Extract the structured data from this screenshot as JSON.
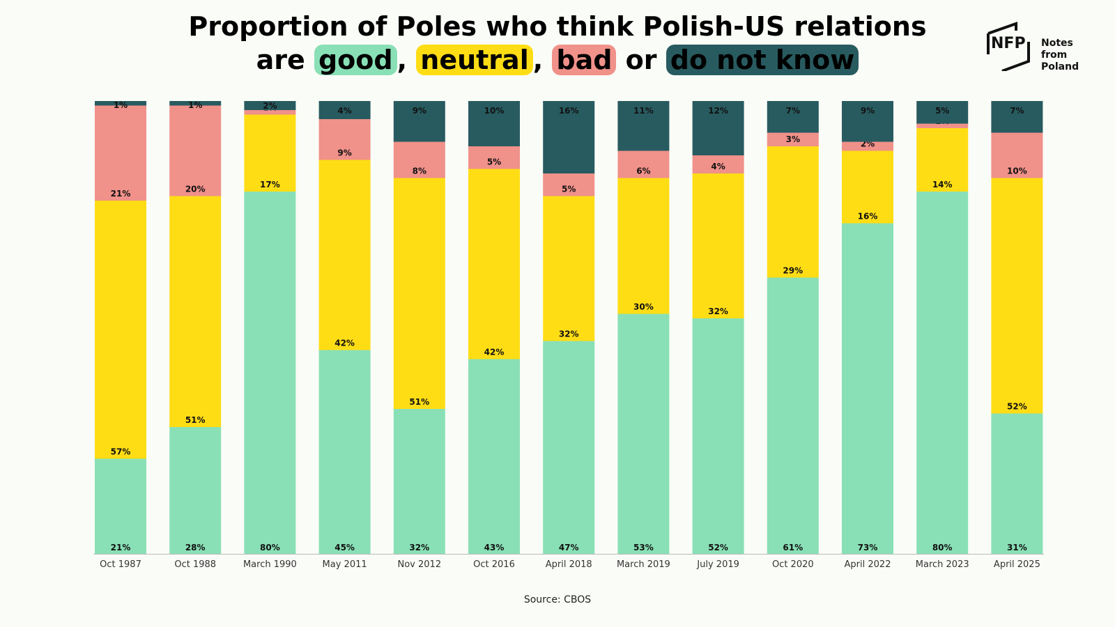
{
  "title": {
    "line1": "Proportion of Poles who think Polish-US relations",
    "are": "are",
    "good": "good",
    "comma1": ",",
    "neutral": "neutral",
    "comma2": ",",
    "bad": "bad",
    "or": "or",
    "dnk": "do not know"
  },
  "logo": {
    "abbr": "NFP",
    "name_line1": "Notes from",
    "name_line2": "Poland"
  },
  "source": "Source: CBOS",
  "colors": {
    "good": "#89e0b6",
    "neutral": "#ffdd15",
    "bad": "#f0918a",
    "dnk": "#285b60"
  },
  "chart_data": {
    "type": "bar",
    "stacked": true,
    "categories": [
      "Oct 1987",
      "Oct 1988",
      "March 1990",
      "May 2011",
      "Nov 2012",
      "Oct 2016",
      "April 2018",
      "March 2019",
      "July 2019",
      "Oct 2020",
      "April 2022",
      "March 2023",
      "April 2025"
    ],
    "series": [
      {
        "name": "good",
        "color": "#89e0b6",
        "values": [
          21,
          28,
          80,
          45,
          32,
          43,
          47,
          53,
          52,
          61,
          73,
          80,
          31
        ]
      },
      {
        "name": "neutral",
        "color": "#ffdd15",
        "values": [
          57,
          51,
          17,
          42,
          51,
          42,
          32,
          30,
          32,
          29,
          16,
          14,
          52
        ]
      },
      {
        "name": "bad",
        "color": "#f0918a",
        "values": [
          21,
          20,
          1,
          9,
          8,
          5,
          5,
          6,
          4,
          3,
          2,
          1,
          10
        ]
      },
      {
        "name": "do not know",
        "color": "#285b60",
        "values": [
          1,
          1,
          2,
          4,
          9,
          10,
          16,
          11,
          12,
          7,
          9,
          5,
          7
        ]
      }
    ],
    "ylim": [
      0,
      100
    ],
    "legend": "title",
    "grid": false
  }
}
